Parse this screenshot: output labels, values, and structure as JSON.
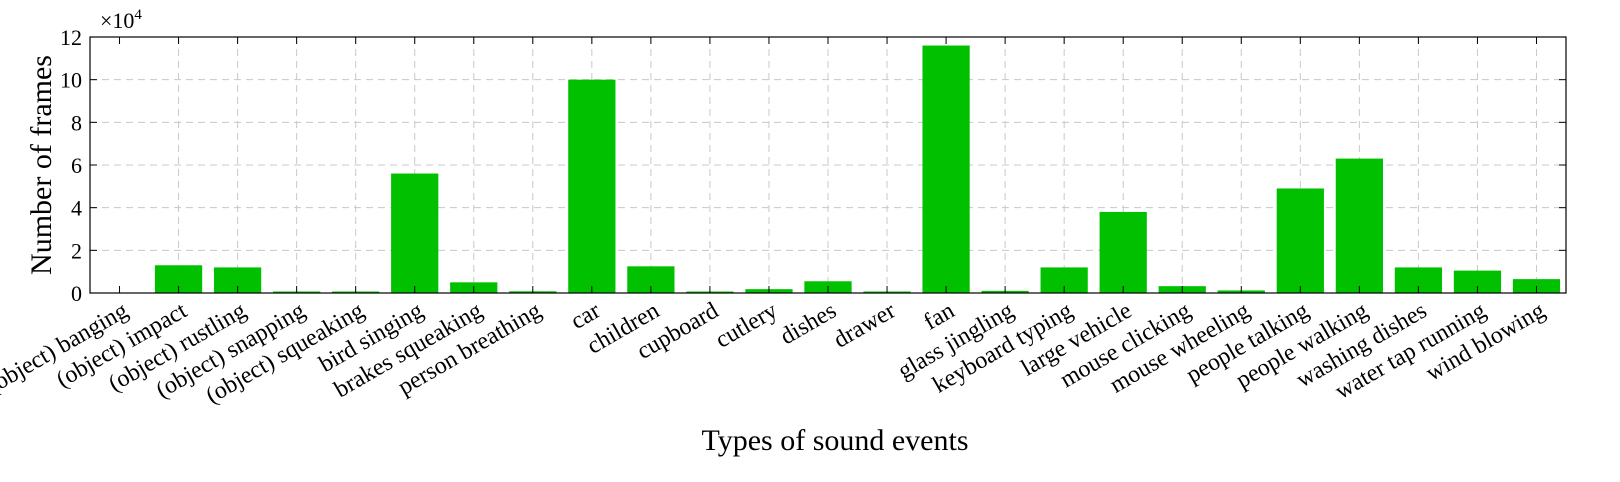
{
  "chart_data": {
    "type": "bar",
    "title": "",
    "xlabel": "Types of sound events",
    "ylabel": "Number of frames",
    "y_scale_note": "×10",
    "y_scale_exponent": "4",
    "ylim": [
      0,
      12
    ],
    "yticks": [
      "0",
      "2",
      "4",
      "6",
      "8",
      "10",
      "12"
    ],
    "grid": true,
    "bar_color": "#00c000",
    "categories": [
      "(object) banging",
      "(object) impact",
      "(object) rustling",
      "(object) snapping",
      "(object) squeaking",
      "bird singing",
      "brakes squeaking",
      "person breathing",
      "car",
      "children",
      "cupboard",
      "cutlery",
      "dishes",
      "drawer",
      "fan",
      "glass jingling",
      "keyboard typing",
      "large vehicle",
      "mouse clicking",
      "mouse wheeling",
      "people talking",
      "people walking",
      "washing dishes",
      "water tap running",
      "wind blowing"
    ],
    "values": [
      0.02,
      1.3,
      1.2,
      0.07,
      0.07,
      5.6,
      0.5,
      0.08,
      10.0,
      1.25,
      0.07,
      0.18,
      0.55,
      0.07,
      11.6,
      0.1,
      1.2,
      3.8,
      0.32,
      0.12,
      4.9,
      6.3,
      1.2,
      1.05,
      0.65
    ]
  }
}
